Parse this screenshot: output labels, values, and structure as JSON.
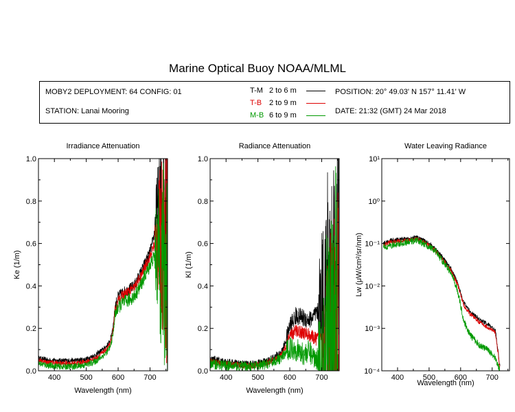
{
  "title": "Marine Optical Buoy NOAA/MLML",
  "info": {
    "deployment": "MOBY2 DEPLOYMENT: 64 CONFIG: 01",
    "station": "STATION: Lanai Mooring",
    "position": "POSITION: 20° 49.03' N   157° 11.41' W",
    "date": "DATE: 21:32 (GMT) 24 Mar 2018",
    "legend": [
      {
        "code": "T-M",
        "range": "2 to 6  m",
        "color": "#000000"
      },
      {
        "code": "T-B",
        "range": "2 to 9  m",
        "color": "#dd0000"
      },
      {
        "code": "M-B",
        "range": "6 to 9  m",
        "color": "#009900"
      }
    ]
  },
  "chart_data": [
    {
      "type": "line",
      "title": "Irradiance Attenuation",
      "xlabel": "Wavelength (nm)",
      "ylabel": "Ke  (1/m)",
      "xlim": [
        350,
        755
      ],
      "ylim": [
        0,
        1
      ],
      "xticks": [
        400,
        500,
        600,
        700
      ],
      "yticks": [
        0.0,
        0.2,
        0.4,
        0.6,
        0.8,
        1.0
      ],
      "ytick_labels": [
        "0.0",
        "0.2",
        "0.4",
        "0.6",
        "0.8",
        "1.0"
      ],
      "scale": "linear",
      "series": [
        {
          "code": "T-M",
          "color": "#000000",
          "noise": 0.012,
          "spikeFrom": 715,
          "x": [
            350,
            380,
            420,
            460,
            500,
            530,
            560,
            575,
            585,
            590,
            600,
            615,
            630,
            650,
            670,
            685,
            700,
            710,
            720,
            740,
            755
          ],
          "y": [
            0.06,
            0.05,
            0.048,
            0.048,
            0.055,
            0.075,
            0.11,
            0.14,
            0.22,
            0.3,
            0.35,
            0.37,
            0.38,
            0.4,
            0.46,
            0.51,
            0.56,
            0.62,
            0.7,
            0.8,
            0.85
          ]
        },
        {
          "code": "T-B",
          "color": "#dd0000",
          "noise": 0.012,
          "spikeFrom": 715,
          "x": [
            350,
            380,
            420,
            460,
            500,
            530,
            560,
            575,
            585,
            590,
            600,
            615,
            630,
            650,
            670,
            685,
            700,
            710,
            720,
            740,
            755
          ],
          "y": [
            0.05,
            0.04,
            0.035,
            0.035,
            0.042,
            0.06,
            0.095,
            0.125,
            0.2,
            0.28,
            0.33,
            0.355,
            0.37,
            0.39,
            0.44,
            0.49,
            0.54,
            0.58,
            0.6,
            0.62,
            0.6
          ]
        },
        {
          "code": "M-B",
          "color": "#009900",
          "noise": 0.015,
          "spikeFrom": 715,
          "x": [
            350,
            380,
            420,
            460,
            500,
            530,
            560,
            575,
            585,
            590,
            600,
            615,
            630,
            650,
            670,
            685,
            700,
            710,
            720,
            740,
            755
          ],
          "y": [
            0.035,
            0.025,
            0.02,
            0.02,
            0.028,
            0.045,
            0.08,
            0.11,
            0.18,
            0.26,
            0.3,
            0.32,
            0.33,
            0.35,
            0.4,
            0.45,
            0.5,
            0.53,
            0.55,
            0.5,
            0.45
          ]
        }
      ]
    },
    {
      "type": "line",
      "title": "Radiance Attenuation",
      "xlabel": "Wavelength (nm)",
      "ylabel": "Kl  (1/m)",
      "xlim": [
        350,
        755
      ],
      "ylim": [
        0,
        1
      ],
      "xticks": [
        400,
        500,
        600,
        700
      ],
      "yticks": [
        0.0,
        0.2,
        0.4,
        0.6,
        0.8,
        1.0
      ],
      "ytick_labels": [
        "0.0",
        "0.2",
        "0.4",
        "0.6",
        "0.8",
        "1.0"
      ],
      "scale": "linear",
      "series": [
        {
          "code": "T-M",
          "color": "#000000",
          "noise": 0.02,
          "spikeFrom": 690,
          "x": [
            350,
            380,
            420,
            460,
            490,
            520,
            550,
            575,
            590,
            600,
            620,
            640,
            660,
            680,
            700,
            720,
            740,
            755
          ],
          "y": [
            0.055,
            0.045,
            0.035,
            0.03,
            0.03,
            0.04,
            0.06,
            0.09,
            0.15,
            0.21,
            0.26,
            0.25,
            0.24,
            0.26,
            0.3,
            0.4,
            0.3,
            0.2
          ]
        },
        {
          "code": "T-B",
          "color": "#dd0000",
          "noise": 0.015,
          "spikeFrom": 700,
          "x": [
            350,
            380,
            420,
            460,
            490,
            520,
            550,
            575,
            590,
            600,
            620,
            640,
            660,
            680,
            700,
            720,
            740,
            755
          ],
          "y": [
            0.045,
            0.035,
            0.028,
            0.025,
            0.025,
            0.033,
            0.05,
            0.075,
            0.12,
            0.16,
            0.19,
            0.18,
            0.17,
            0.15,
            0.16,
            0.17,
            0.1,
            0.05
          ]
        },
        {
          "code": "M-B",
          "color": "#009900",
          "noise": 0.025,
          "spikeFrom": 690,
          "x": [
            350,
            380,
            420,
            460,
            490,
            520,
            550,
            575,
            590,
            600,
            620,
            640,
            660,
            680,
            700,
            720,
            740,
            755
          ],
          "y": [
            0.035,
            0.028,
            0.022,
            0.02,
            0.02,
            0.028,
            0.045,
            0.06,
            0.09,
            0.11,
            0.1,
            0.08,
            0.09,
            0.06,
            0.05,
            0.06,
            0.04,
            0.02
          ]
        }
      ]
    },
    {
      "type": "line",
      "title": "Water Leaving Radiance",
      "xlabel": "Wavelength (nm)",
      "ylabel": "Lw  (μW/cm²/sr/nm)",
      "xlim": [
        350,
        755
      ],
      "ylim": [
        0.0001,
        10
      ],
      "xticks": [
        400,
        500,
        600,
        700
      ],
      "yticks": [
        0.0001,
        0.001,
        0.01,
        0.1,
        1,
        10
      ],
      "ytick_labels": [
        "10⁻⁴",
        "10⁻³",
        "10⁻²",
        "10⁻¹",
        "10⁰",
        "10¹"
      ],
      "scale": "log",
      "series": [
        {
          "code": "T-M",
          "color": "#000000",
          "noise": 0.05,
          "spikeFrom": 2000,
          "x": [
            355,
            380,
            410,
            440,
            460,
            480,
            500,
            520,
            550,
            570,
            590,
            610,
            630,
            660,
            690,
            710,
            725
          ],
          "y": [
            0.1,
            0.12,
            0.125,
            0.13,
            0.14,
            0.12,
            0.1,
            0.075,
            0.04,
            0.025,
            0.012,
            0.004,
            0.0025,
            0.0016,
            0.0012,
            0.0009,
            0.00012
          ]
        },
        {
          "code": "T-B",
          "color": "#dd0000",
          "noise": 0.05,
          "spikeFrom": 2000,
          "x": [
            355,
            380,
            410,
            440,
            460,
            480,
            500,
            520,
            550,
            570,
            590,
            610,
            630,
            660,
            690,
            710,
            725
          ],
          "y": [
            0.09,
            0.11,
            0.115,
            0.12,
            0.13,
            0.11,
            0.09,
            0.068,
            0.036,
            0.023,
            0.011,
            0.0035,
            0.0022,
            0.0014,
            0.001,
            0.0008,
            0.00011
          ]
        },
        {
          "code": "M-B",
          "color": "#009900",
          "noise": 0.08,
          "spikeFrom": 2000,
          "x": [
            355,
            380,
            410,
            440,
            460,
            480,
            500,
            520,
            550,
            570,
            590,
            610,
            630,
            660,
            690,
            710,
            725
          ],
          "y": [
            0.08,
            0.09,
            0.1,
            0.11,
            0.12,
            0.1,
            0.085,
            0.065,
            0.033,
            0.02,
            0.008,
            0.0015,
            0.0007,
            0.0004,
            0.0003,
            0.0002,
            0.0001
          ]
        }
      ]
    }
  ]
}
